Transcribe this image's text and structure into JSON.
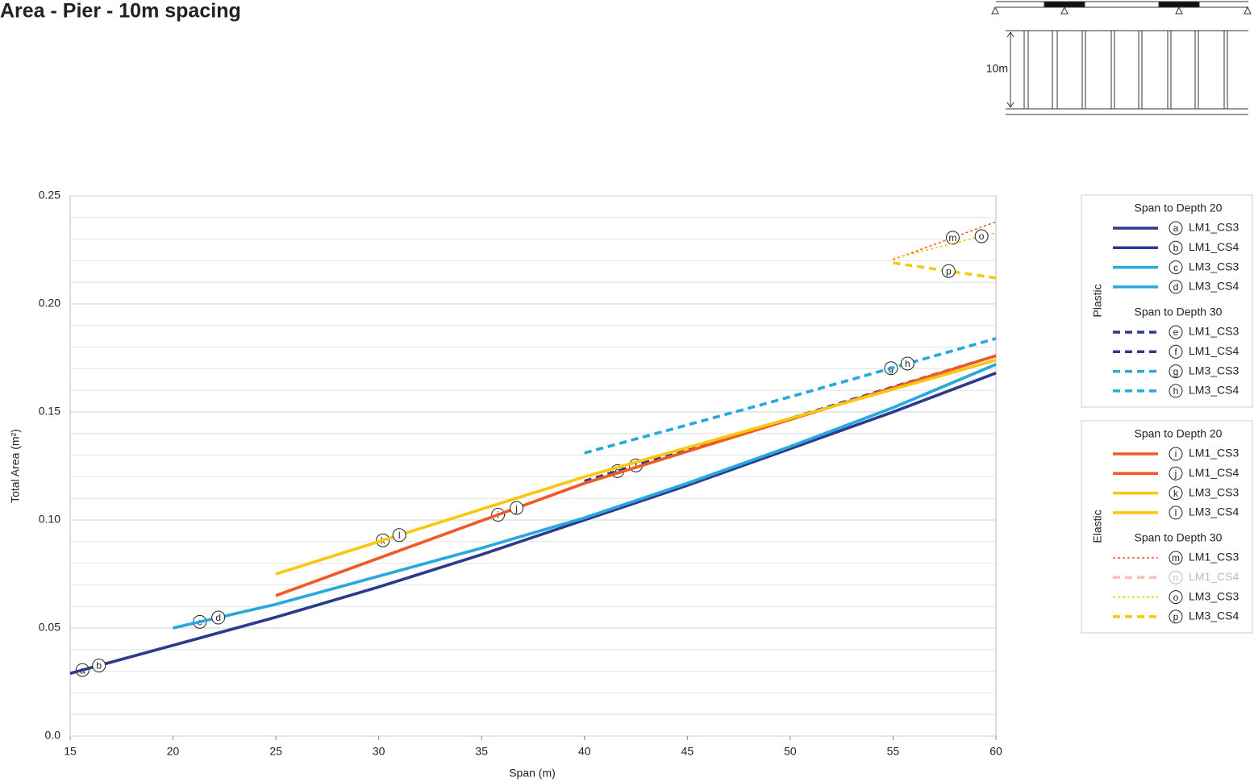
{
  "chart_data": {
    "type": "line",
    "title": "Area - Pier - 10m spacing",
    "x_label": "Span (m)",
    "y_label": "Total Area (m²)",
    "xlim": [
      15,
      60
    ],
    "xticks": [
      15,
      20,
      25,
      30,
      35,
      40,
      45,
      50,
      55,
      60
    ],
    "ylim": [
      0,
      0.25
    ],
    "yticks": [
      {
        "value": 0,
        "label": "0.0"
      },
      0.05,
      {
        "value": 0.1,
        "label": "0.10"
      },
      0.15,
      {
        "value": 0.2,
        "label": "0.20"
      },
      0.25
    ],
    "ygrid": [
      0.01,
      0.02,
      0.03,
      0.04,
      0.06,
      0.07,
      0.08,
      0.09,
      0.11,
      0.12,
      0.13,
      0.14,
      0.16,
      0.17,
      0.18,
      0.19,
      0.21,
      0.22,
      0.23,
      0.24
    ],
    "grid": true,
    "legend_groups": [
      {
        "name": "Plastic",
        "sections": [
          {
            "name": "Span to Depth 20"
          },
          {
            "name": "Span to Depth 30"
          }
        ]
      },
      {
        "name": "Elastic",
        "sections": [
          {
            "name": "Span to Depth 20"
          },
          {
            "name": "Span to Depth 30"
          }
        ]
      }
    ],
    "series": [
      {
        "name": "LM1_CS3",
        "label": "a",
        "color": "#2e3a8c",
        "dash": "solid",
        "x": [
          15,
          20,
          25,
          30,
          35,
          40,
          45,
          50,
          55,
          60
        ],
        "values": [
          0.029,
          0.042,
          0.055,
          0.069,
          0.084,
          0.1,
          0.116,
          0.133,
          0.15,
          0.168
        ]
      },
      {
        "name": "LM1_CS4",
        "label": "b",
        "color": "#2e3a8c",
        "dash": "solid",
        "x": [
          15,
          20,
          25,
          30,
          35,
          40,
          45,
          50,
          55,
          60
        ],
        "values": [
          0.029,
          0.042,
          0.055,
          0.069,
          0.084,
          0.1,
          0.116,
          0.133,
          0.15,
          0.168
        ]
      },
      {
        "name": "LM3_CS3",
        "label": "c",
        "color": "#29a8df",
        "dash": "solid",
        "x": [
          20,
          25,
          30,
          35,
          40,
          45,
          50,
          55,
          60
        ],
        "values": [
          0.05,
          0.061,
          0.074,
          0.087,
          0.101,
          0.117,
          0.134,
          0.152,
          0.172
        ]
      },
      {
        "name": "LM3_CS4",
        "label": "d",
        "color": "#29a8df",
        "dash": "solid",
        "x": [
          20,
          25,
          30,
          35,
          40,
          45,
          50,
          55,
          60
        ],
        "values": [
          0.05,
          0.061,
          0.074,
          0.087,
          0.101,
          0.117,
          0.134,
          0.152,
          0.172
        ]
      },
      {
        "name": "LM1_CS3",
        "label": "e",
        "color": "#2e3a8c",
        "dash": "dashed",
        "x": [
          40,
          50,
          60
        ],
        "values": [
          0.118,
          0.147,
          0.176
        ]
      },
      {
        "name": "LM1_CS4",
        "label": "f",
        "color": "#2e3a8c",
        "dash": "dashed",
        "x": [
          40,
          50,
          60
        ],
        "values": [
          0.118,
          0.147,
          0.176
        ]
      },
      {
        "name": "LM3_CS3",
        "label": "g",
        "color": "#29a8df",
        "dash": "dashed",
        "x": [
          40,
          50,
          60
        ],
        "values": [
          0.131,
          0.157,
          0.184
        ]
      },
      {
        "name": "LM3_CS4",
        "label": "h",
        "color": "#29a8df",
        "dash": "dashed",
        "x": [
          40,
          50,
          60
        ],
        "values": [
          0.131,
          0.157,
          0.184
        ]
      },
      {
        "name": "LM1_CS3",
        "label": "i",
        "color": "#f05a28",
        "dash": "solid",
        "x": [
          25,
          40,
          60
        ],
        "values": [
          0.065,
          0.117,
          0.176
        ]
      },
      {
        "name": "LM1_CS4",
        "label": "j",
        "color": "#f05a28",
        "dash": "solid",
        "x": [
          25,
          40,
          60
        ],
        "values": [
          0.065,
          0.117,
          0.176
        ]
      },
      {
        "name": "LM3_CS3",
        "label": "k",
        "color": "#f9c80e",
        "dash": "solid",
        "x": [
          25,
          40,
          60
        ],
        "values": [
          0.075,
          0.12,
          0.174
        ]
      },
      {
        "name": "LM3_CS4",
        "label": "l",
        "color": "#f9c80e",
        "dash": "solid",
        "x": [
          25,
          40,
          60
        ],
        "values": [
          0.075,
          0.12,
          0.174
        ]
      },
      {
        "name": "LM1_CS3",
        "label": "m",
        "color": "#f05a28",
        "dash": "dotted",
        "x": [
          55,
          60
        ],
        "values": [
          0.2205,
          0.238
        ]
      },
      {
        "name": "LM1_CS4",
        "label": "n",
        "color": "#f7c3b5",
        "dash": "dashed",
        "muted": true,
        "x": [
          55,
          60
        ],
        "values": [
          null,
          null
        ]
      },
      {
        "name": "LM3_CS3",
        "label": "o",
        "color": "#f9c80e",
        "dash": "dotted",
        "x": [
          55,
          60
        ],
        "values": [
          0.221,
          0.233
        ]
      },
      {
        "name": "LM3_CS4",
        "label": "p",
        "color": "#f9c80e",
        "dash": "dashed",
        "x": [
          55,
          60
        ],
        "values": [
          0.219,
          0.212
        ]
      }
    ]
  },
  "inset": {
    "label": "10m"
  }
}
